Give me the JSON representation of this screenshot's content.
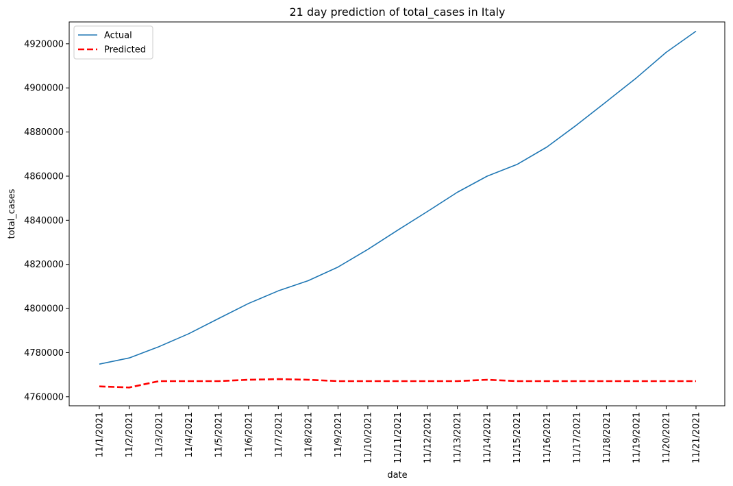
{
  "chart_data": {
    "type": "line",
    "title": "21 day prediction of total_cases in Italy",
    "xlabel": "date",
    "ylabel": "total_cases",
    "categories": [
      "11/1/2021",
      "11/2/2021",
      "11/3/2021",
      "11/4/2021",
      "11/5/2021",
      "11/6/2021",
      "11/7/2021",
      "11/8/2021",
      "11/9/2021",
      "11/10/2021",
      "11/11/2021",
      "11/12/2021",
      "11/13/2021",
      "11/14/2021",
      "11/15/2021",
      "11/16/2021",
      "11/17/2021",
      "11/18/2021",
      "11/19/2021",
      "11/20/2021",
      "11/21/2021"
    ],
    "yticks": [
      4760000,
      4780000,
      4800000,
      4820000,
      4840000,
      4860000,
      4880000,
      4900000,
      4920000
    ],
    "ylim": [
      4755900,
      4929900
    ],
    "legend_position": "top-left",
    "grid": false,
    "series": [
      {
        "name": "Actual",
        "color": "#1f77b4",
        "style": "solid",
        "values": [
          4774800,
          4777600,
          4782700,
          4788600,
          4795500,
          4802300,
          4808000,
          4812600,
          4818800,
          4826800,
          4835500,
          4844000,
          4852700,
          4860000,
          4865300,
          4873200,
          4883200,
          4893800,
          4904500,
          4916100,
          4925700
        ]
      },
      {
        "name": "Predicted",
        "color": "#ff0000",
        "style": "dashed",
        "values": [
          4764700,
          4764200,
          4767100,
          4767100,
          4767100,
          4767700,
          4768000,
          4767700,
          4767100,
          4767100,
          4767100,
          4767100,
          4767100,
          4767700,
          4767100,
          4767100,
          4767100,
          4767100,
          4767100,
          4767100,
          4767100
        ]
      }
    ]
  }
}
